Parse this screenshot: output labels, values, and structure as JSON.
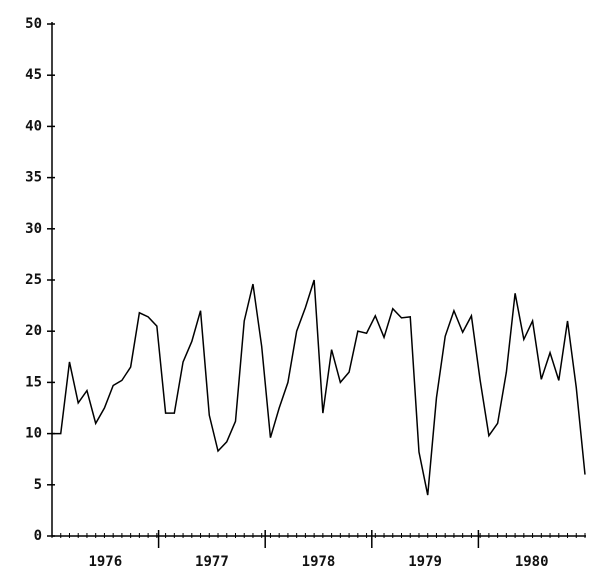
{
  "chart_data": {
    "type": "line",
    "categories": [
      null,
      null,
      null,
      null,
      null,
      null,
      null,
      null,
      null,
      null,
      null,
      null,
      null,
      null,
      null,
      null,
      null,
      null,
      null,
      null,
      null,
      null,
      null,
      null,
      null,
      null,
      null,
      null,
      null,
      null,
      null,
      null,
      null,
      null,
      null,
      null,
      null,
      null,
      null,
      null,
      null,
      null,
      null,
      null,
      null,
      null,
      null,
      null,
      null,
      null,
      null,
      null,
      null,
      null,
      null,
      null,
      null,
      null,
      null,
      null,
      null,
      null
    ],
    "year_labels": [
      "1976",
      "1977",
      "1978",
      "1979",
      "1980"
    ],
    "series": [
      {
        "color": "#000000",
        "values": [
          10,
          10,
          17,
          13,
          14.2,
          11,
          12.5,
          14.7,
          15.2,
          16.5,
          21.8,
          21.4,
          20.5,
          12,
          12,
          17,
          19,
          22,
          11.8,
          8.3,
          9.2,
          11.2,
          21,
          24.6,
          18.5,
          9.6,
          12.5,
          15,
          20,
          22.3,
          25,
          12,
          18.2,
          15,
          16,
          20,
          19.8,
          21.5,
          19.4,
          22.2,
          21.3,
          21.4,
          8.2,
          4,
          13.5,
          19.5,
          22,
          19.9,
          21.5,
          15.2,
          9.8,
          11,
          16,
          23.7,
          19.2,
          21,
          15.3,
          17.9,
          15.2,
          21,
          14.5,
          6
        ]
      }
    ],
    "ylim": [
      0,
      50
    ],
    "yticks": [
      0,
      5,
      10,
      15,
      20,
      25,
      30,
      35,
      40,
      45,
      50
    ]
  }
}
